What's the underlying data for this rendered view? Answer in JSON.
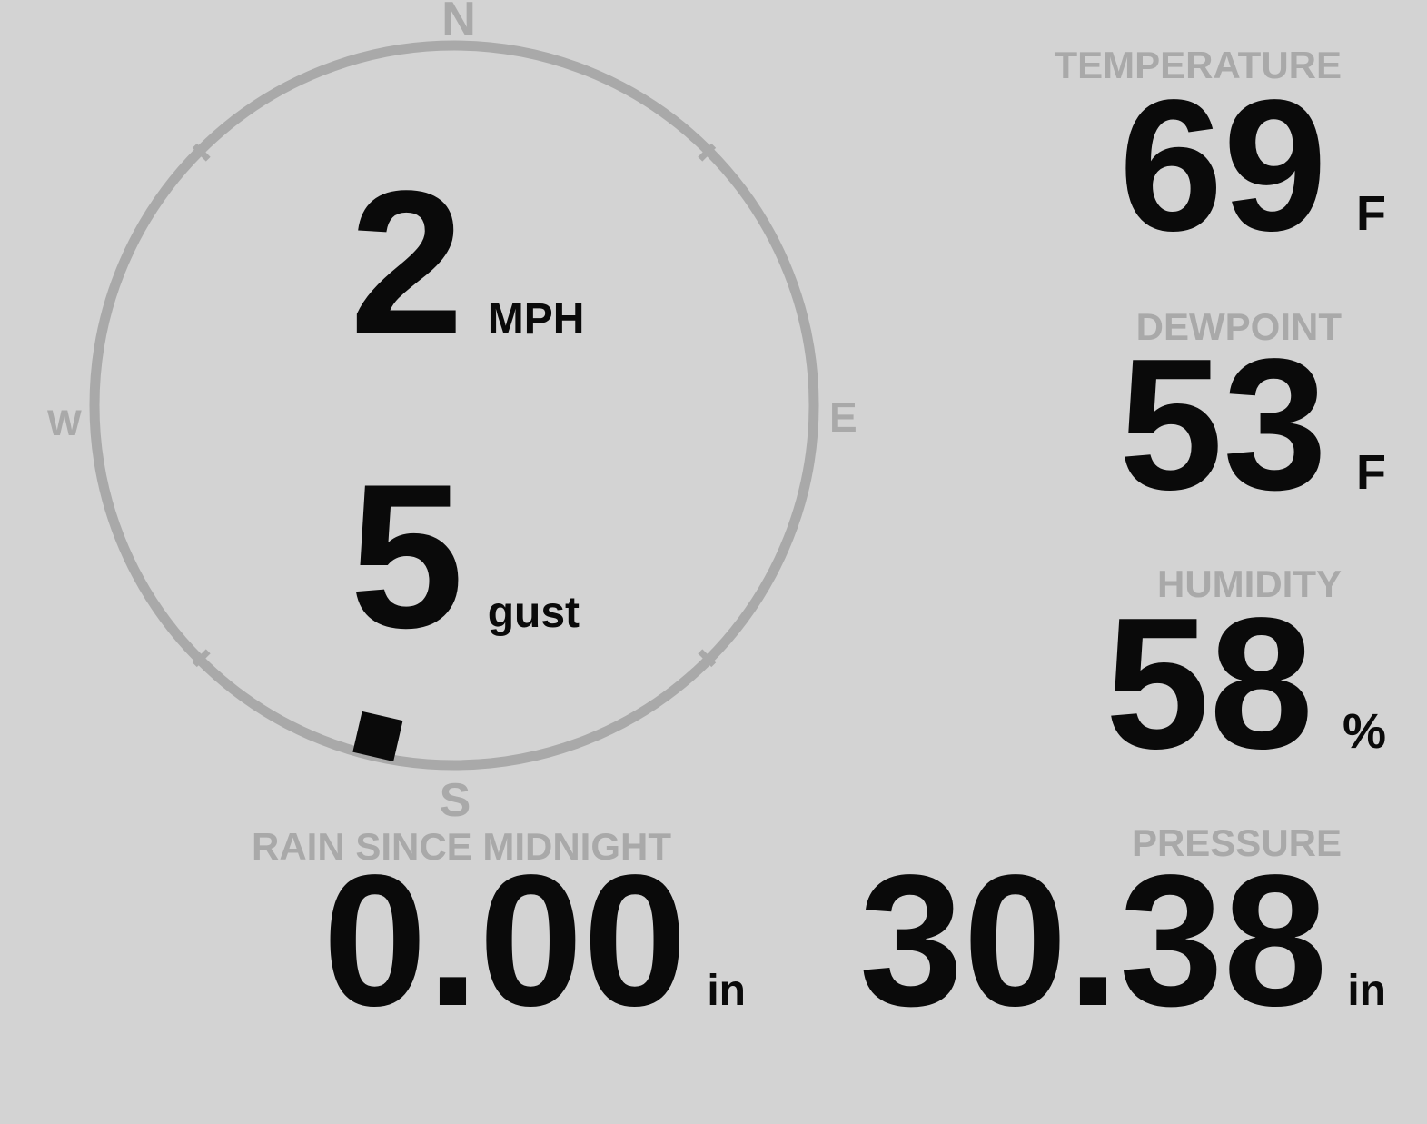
{
  "theme": {
    "background": "#d3d3d3",
    "muted": "#a9a9a9",
    "ink": "#0a0a0a"
  },
  "compass": {
    "labels": {
      "north": "N",
      "east": "E",
      "south": "S",
      "west": "W"
    },
    "wind": {
      "speed": "2",
      "speed_unit": "MPH",
      "gust": "5",
      "gust_unit": "gust",
      "direction_deg": 193
    }
  },
  "sections": {
    "temperature": {
      "label": "TEMPERATURE",
      "value": "69",
      "unit": "F"
    },
    "dewpoint": {
      "label": "DEWPOINT",
      "value": "53",
      "unit": "F"
    },
    "humidity": {
      "label": "HUMIDITY",
      "value": "58",
      "unit": "%"
    },
    "rain": {
      "label": "RAIN SINCE MIDNIGHT",
      "value": "0.00",
      "unit": "in"
    },
    "pressure": {
      "label": "PRESSURE",
      "value": "30.38",
      "unit": "in"
    }
  }
}
